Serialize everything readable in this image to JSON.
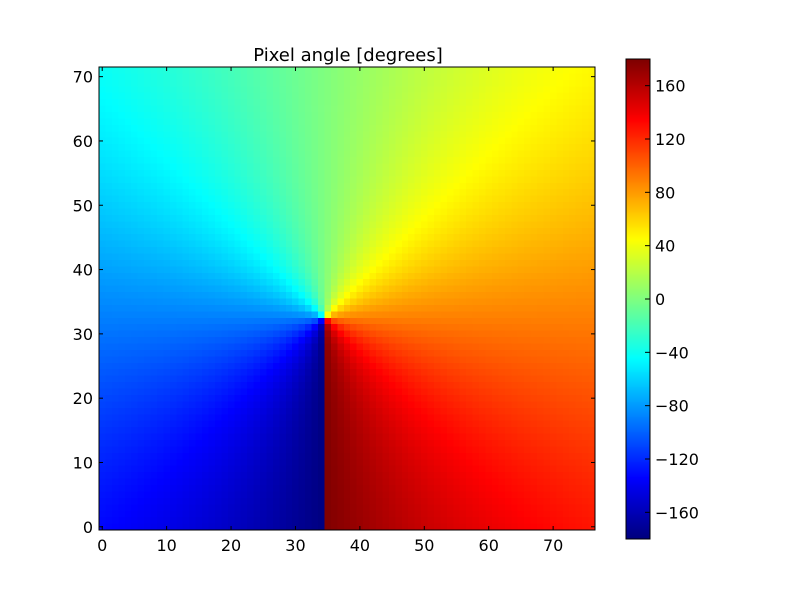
{
  "chart_data": {
    "type": "heatmap",
    "title": "Pixel angle [degrees]",
    "xlabel": "",
    "ylabel": "",
    "x_range": [
      -0.5,
      76.5
    ],
    "y_range": [
      -0.5,
      71.5
    ],
    "grid": false,
    "origin": "lower",
    "center": {
      "x": 34.5,
      "y": 32.5
    },
    "value_formula": "angle = atan2(x - center_x, y - center_y) in degrees",
    "value_range": [
      -180,
      180
    ],
    "colormap": "jet",
    "x_ticks": [
      {
        "value": 0,
        "label": "0"
      },
      {
        "value": 10,
        "label": "10"
      },
      {
        "value": 20,
        "label": "20"
      },
      {
        "value": 30,
        "label": "30"
      },
      {
        "value": 40,
        "label": "40"
      },
      {
        "value": 50,
        "label": "50"
      },
      {
        "value": 60,
        "label": "60"
      },
      {
        "value": 70,
        "label": "70"
      }
    ],
    "y_ticks": [
      {
        "value": 0,
        "label": "0"
      },
      {
        "value": 10,
        "label": "10"
      },
      {
        "value": 20,
        "label": "20"
      },
      {
        "value": 30,
        "label": "30"
      },
      {
        "value": 40,
        "label": "40"
      },
      {
        "value": 50,
        "label": "50"
      },
      {
        "value": 60,
        "label": "60"
      },
      {
        "value": 70,
        "label": "70"
      }
    ],
    "colorbar": {
      "range": [
        -180,
        180
      ],
      "ticks": [
        {
          "value": 160,
          "label": "160"
        },
        {
          "value": 120,
          "label": "120"
        },
        {
          "value": 80,
          "label": "80"
        },
        {
          "value": 40,
          "label": "40"
        },
        {
          "value": 0,
          "label": "0"
        },
        {
          "value": -40,
          "label": "−40"
        },
        {
          "value": -80,
          "label": "−80"
        },
        {
          "value": -120,
          "label": "−120"
        },
        {
          "value": -160,
          "label": "−160"
        }
      ]
    }
  },
  "colors": {
    "jet_stops": [
      "#00007f",
      "#0000ff",
      "#007fff",
      "#00ffff",
      "#7fff7f",
      "#ffff00",
      "#ff7f00",
      "#ff0000",
      "#7f0000"
    ],
    "axis": "#000000",
    "background": "#ffffff"
  }
}
